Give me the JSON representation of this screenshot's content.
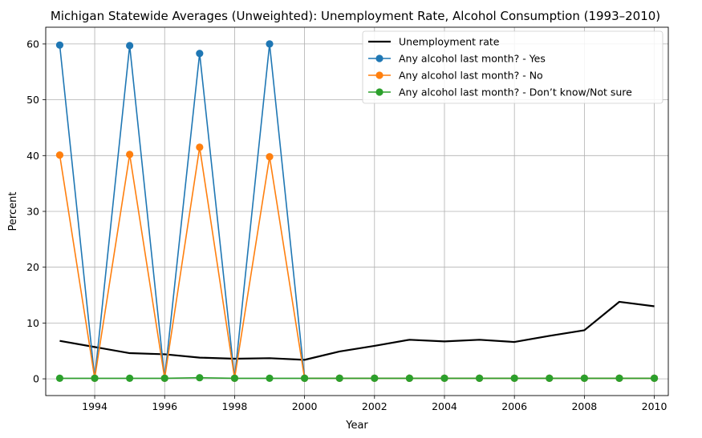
{
  "chart_data": {
    "type": "line",
    "title": "Michigan Statewide Averages (Unweighted): Unemployment Rate, Alcohol Consumption (1993–2010)",
    "xlabel": "Year",
    "ylabel": "Percent",
    "xlim": [
      1992.6,
      2010.4
    ],
    "ylim": [
      -3,
      63
    ],
    "xticks": [
      1994,
      1996,
      1998,
      2000,
      2002,
      2004,
      2006,
      2008,
      2010
    ],
    "yticks": [
      0,
      10,
      20,
      30,
      40,
      50,
      60
    ],
    "grid": true,
    "legend_position": "top-right",
    "x": [
      1993,
      1994,
      1995,
      1996,
      1997,
      1998,
      1999,
      2000,
      2001,
      2002,
      2003,
      2004,
      2005,
      2006,
      2007,
      2008,
      2009,
      2010
    ],
    "series": [
      {
        "name": "Unemployment rate",
        "color": "#000000",
        "markers": false,
        "values": [
          6.8,
          5.7,
          4.6,
          4.4,
          3.8,
          3.6,
          3.7,
          3.4,
          4.9,
          5.9,
          7.0,
          6.7,
          7.0,
          6.6,
          7.7,
          8.7,
          13.8,
          13.0
        ]
      },
      {
        "name": "Any alcohol last month? - Yes",
        "color": "#1f77b4",
        "markers": true,
        "values": [
          59.8,
          0.1,
          59.7,
          0.1,
          58.3,
          0.1,
          60.0,
          0.1,
          0.1,
          0.1,
          0.1,
          0.1,
          0.1,
          0.1,
          0.1,
          0.1,
          0.1,
          0.1
        ]
      },
      {
        "name": "Any alcohol last month? - No",
        "color": "#ff7f0e",
        "markers": true,
        "values": [
          40.1,
          0.1,
          40.2,
          0.1,
          41.5,
          0.1,
          39.8,
          0.1,
          0.1,
          0.1,
          0.1,
          0.1,
          0.1,
          0.1,
          0.1,
          0.1,
          0.1,
          0.1
        ]
      },
      {
        "name": "Any alcohol last month? - Don’t know/Not sure",
        "color": "#2ca02c",
        "markers": true,
        "values": [
          0.1,
          0.1,
          0.1,
          0.1,
          0.2,
          0.1,
          0.1,
          0.1,
          0.1,
          0.1,
          0.1,
          0.1,
          0.1,
          0.1,
          0.1,
          0.1,
          0.1,
          0.1
        ]
      }
    ]
  }
}
